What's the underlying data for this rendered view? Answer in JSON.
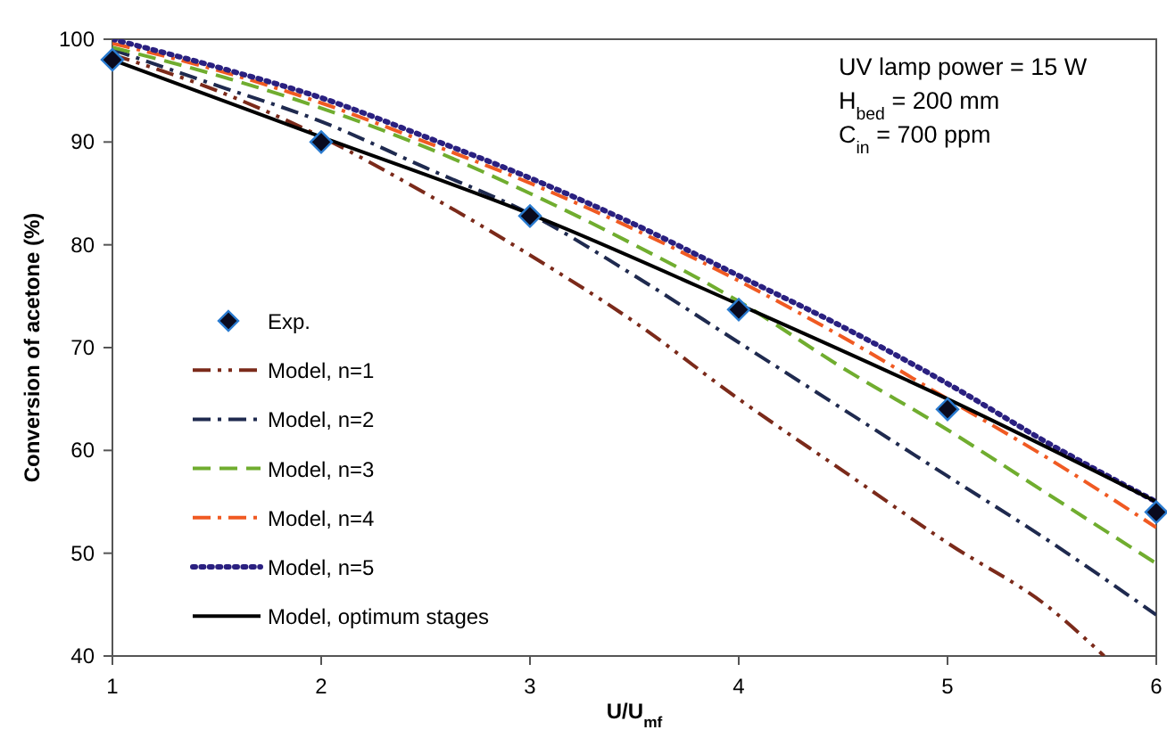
{
  "chart_data": {
    "type": "line",
    "xlabel": "U/U$_{mf}$",
    "ylabel": "Conversion of acetone (%)",
    "xlim": [
      1,
      6
    ],
    "ylim": [
      40,
      100
    ],
    "xticks": [
      1,
      2,
      3,
      4,
      5,
      6
    ],
    "yticks": [
      40,
      50,
      60,
      70,
      80,
      90,
      100
    ],
    "grid": false,
    "legend": "left",
    "annotations": [
      "UV lamp power = 15 W",
      "H$_{bed}$ = 200 mm",
      "C$_{in}$ =  700 ppm"
    ],
    "series": [
      {
        "name": "Exp.",
        "type": "scatter",
        "marker": "diamond",
        "color": "#0a0a1e",
        "x": [
          1,
          2,
          3,
          4,
          5,
          6
        ],
        "values": [
          98,
          90,
          82.8,
          73.7,
          64,
          54
        ]
      },
      {
        "name": "Model, n=1",
        "line_style": "dashdotdot",
        "color": "#7b2a1a",
        "x": [
          1,
          1.5,
          2,
          2.5,
          3,
          3.5,
          4,
          4.5,
          5,
          5.5,
          5.75
        ],
        "values": [
          98.5,
          95,
          90.5,
          85,
          79,
          72.5,
          65,
          58,
          51,
          44.5,
          40
        ]
      },
      {
        "name": "Model, n=2",
        "line_style": "dashdot",
        "color": "#1f2a4f",
        "x": [
          1,
          1.5,
          2,
          2.5,
          3,
          3.5,
          4,
          4.5,
          5,
          5.5,
          6
        ],
        "values": [
          99,
          95.5,
          92,
          87.5,
          83,
          77,
          70.5,
          64,
          57.5,
          51,
          44
        ]
      },
      {
        "name": "Model, n=3",
        "line_style": "dashed",
        "color": "#70ad2f",
        "x": [
          1,
          1.5,
          2,
          2.5,
          3,
          3.5,
          4,
          4.5,
          5,
          5.5,
          6
        ],
        "values": [
          99.2,
          96.5,
          93.3,
          89.5,
          85,
          80,
          74.5,
          68,
          62,
          55.5,
          49
        ]
      },
      {
        "name": "Model, n=4",
        "line_style": "dashdot",
        "color": "#f05a22",
        "x": [
          1,
          1.5,
          2,
          2.5,
          3,
          3.5,
          4,
          4.5,
          5,
          5.5,
          6
        ],
        "values": [
          99.6,
          97,
          93.8,
          90,
          86,
          81.5,
          76.5,
          71,
          65,
          59,
          52.5
        ]
      },
      {
        "name": "Model, n=5",
        "line_style": "dotted",
        "color": "#2a2080",
        "x": [
          1,
          1.5,
          2,
          2.5,
          3,
          3.5,
          4,
          4.5,
          5,
          5.5,
          6
        ],
        "values": [
          100,
          97.3,
          94.3,
          90.5,
          86.5,
          82,
          77,
          72,
          66.5,
          60.5,
          55
        ]
      },
      {
        "name": "Model, optimum stages",
        "line_style": "solid",
        "color": "#000000",
        "x": [
          1,
          2,
          3,
          4,
          5,
          6
        ],
        "values": [
          98,
          90.5,
          83,
          74.2,
          65,
          55
        ]
      }
    ]
  }
}
